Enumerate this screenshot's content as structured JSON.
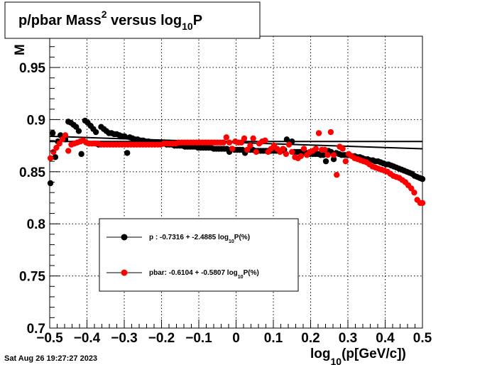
{
  "chart_data": {
    "type": "scatter",
    "title": {
      "main": "p/pbar Mass",
      "sup": "2",
      "mid": " versus log",
      "sub": "10",
      "end": "P"
    },
    "ylabel_fragment": "M",
    "xlabel": {
      "pre": "log",
      "sub": "10",
      "post": "(p[GeV/c])"
    },
    "xlim": [
      -0.5,
      0.5
    ],
    "ylim": [
      0.7,
      0.98
    ],
    "xticks": [
      -0.5,
      -0.4,
      -0.3,
      -0.2,
      -0.1,
      0,
      0.1,
      0.2,
      0.3,
      0.4,
      0.5
    ],
    "xtick_labels": [
      "−0.5",
      "−0.4",
      "−0.3",
      "−0.2",
      "−0.1",
      "0",
      "0.1",
      "0.2",
      "0.3",
      "0.4",
      "0.5"
    ],
    "yticks": [
      0.7,
      0.75,
      0.8,
      0.85,
      0.9,
      0.95
    ],
    "ytick_labels": [
      "0.7",
      "0.75",
      "0.8",
      "0.85",
      "0.9",
      "0.95"
    ],
    "grid": true,
    "legend_position": "lower-left inside plot",
    "series": [
      {
        "name": "p",
        "legend_label": {
          "pre": "p  : -0.7316 + -2.4885 log",
          "sub": "10",
          "post": "P(%)"
        },
        "color": "#000000",
        "points": [
          [
            -0.498,
            0.839
          ],
          [
            -0.492,
            0.887
          ],
          [
            -0.485,
            0.864
          ],
          [
            -0.478,
            0.879
          ],
          [
            -0.471,
            0.885
          ],
          [
            -0.465,
            0.883
          ],
          [
            -0.458,
            0.881
          ],
          [
            -0.45,
            0.898
          ],
          [
            -0.443,
            0.897
          ],
          [
            -0.436,
            0.895
          ],
          [
            -0.429,
            0.893
          ],
          [
            -0.422,
            0.889
          ],
          [
            -0.415,
            0.867
          ],
          [
            -0.405,
            0.899
          ],
          [
            -0.398,
            0.897
          ],
          [
            -0.39,
            0.894
          ],
          [
            -0.383,
            0.891
          ],
          [
            -0.376,
            0.888
          ],
          [
            -0.369,
            0.876
          ],
          [
            -0.362,
            0.893
          ],
          [
            -0.355,
            0.891
          ],
          [
            -0.348,
            0.889
          ],
          [
            -0.341,
            0.887
          ],
          [
            -0.334,
            0.887
          ],
          [
            -0.327,
            0.886
          ],
          [
            -0.32,
            0.886
          ],
          [
            -0.313,
            0.885
          ],
          [
            -0.306,
            0.884
          ],
          [
            -0.299,
            0.884
          ],
          [
            -0.292,
            0.868
          ],
          [
            -0.285,
            0.883
          ],
          [
            -0.278,
            0.882
          ],
          [
            -0.271,
            0.881
          ],
          [
            -0.264,
            0.881
          ],
          [
            -0.256,
            0.88
          ],
          [
            -0.249,
            0.88
          ],
          [
            -0.242,
            0.879
          ],
          [
            -0.235,
            0.879
          ],
          [
            -0.228,
            0.878
          ],
          [
            -0.221,
            0.878
          ],
          [
            -0.214,
            0.878
          ],
          [
            -0.207,
            0.877
          ],
          [
            -0.2,
            0.877
          ],
          [
            -0.193,
            0.877
          ],
          [
            -0.186,
            0.876
          ],
          [
            -0.179,
            0.876
          ],
          [
            -0.172,
            0.876
          ],
          [
            -0.165,
            0.875
          ],
          [
            -0.158,
            0.875
          ],
          [
            -0.151,
            0.875
          ],
          [
            -0.144,
            0.875
          ],
          [
            -0.137,
            0.874
          ],
          [
            -0.13,
            0.874
          ],
          [
            -0.123,
            0.874
          ],
          [
            -0.116,
            0.874
          ],
          [
            -0.109,
            0.874
          ],
          [
            -0.102,
            0.873
          ],
          [
            -0.095,
            0.873
          ],
          [
            -0.088,
            0.873
          ],
          [
            -0.081,
            0.873
          ],
          [
            -0.074,
            0.873
          ],
          [
            -0.067,
            0.873
          ],
          [
            -0.06,
            0.872
          ],
          [
            -0.053,
            0.872
          ],
          [
            -0.046,
            0.872
          ],
          [
            -0.039,
            0.872
          ],
          [
            -0.032,
            0.872
          ],
          [
            -0.025,
            0.872
          ],
          [
            -0.018,
            0.869
          ],
          [
            -0.011,
            0.872
          ],
          [
            -0.004,
            0.871
          ],
          [
            0.003,
            0.871
          ],
          [
            0.01,
            0.871
          ],
          [
            0.017,
            0.871
          ],
          [
            0.024,
            0.868
          ],
          [
            0.031,
            0.871
          ],
          [
            0.038,
            0.871
          ],
          [
            0.045,
            0.871
          ],
          [
            0.052,
            0.87
          ],
          [
            0.059,
            0.87
          ],
          [
            0.066,
            0.87
          ],
          [
            0.073,
            0.87
          ],
          [
            0.08,
            0.87
          ],
          [
            0.087,
            0.87
          ],
          [
            0.094,
            0.87
          ],
          [
            0.101,
            0.87
          ],
          [
            0.108,
            0.87
          ],
          [
            0.115,
            0.87
          ],
          [
            0.122,
            0.87
          ],
          [
            0.129,
            0.871
          ],
          [
            0.136,
            0.881
          ],
          [
            0.15,
            0.879
          ],
          [
            0.157,
            0.869
          ],
          [
            0.164,
            0.869
          ],
          [
            0.171,
            0.869
          ],
          [
            0.178,
            0.868
          ],
          [
            0.185,
            0.868
          ],
          [
            0.192,
            0.868
          ],
          [
            0.199,
            0.867
          ],
          [
            0.206,
            0.867
          ],
          [
            0.213,
            0.867
          ],
          [
            0.22,
            0.867
          ],
          [
            0.227,
            0.866
          ],
          [
            0.234,
            0.866
          ],
          [
            0.241,
            0.86
          ],
          [
            0.248,
            0.87
          ],
          [
            0.255,
            0.869
          ],
          [
            0.262,
            0.862
          ],
          [
            0.269,
            0.868
          ],
          [
            0.276,
            0.867
          ],
          [
            0.283,
            0.866
          ],
          [
            0.29,
            0.866
          ],
          [
            0.297,
            0.866
          ],
          [
            0.304,
            0.866
          ],
          [
            0.311,
            0.865
          ],
          [
            0.318,
            0.865
          ],
          [
            0.325,
            0.864
          ],
          [
            0.332,
            0.864
          ],
          [
            0.339,
            0.863
          ],
          [
            0.346,
            0.862
          ],
          [
            0.353,
            0.862
          ],
          [
            0.36,
            0.861
          ],
          [
            0.367,
            0.861
          ],
          [
            0.374,
            0.86
          ],
          [
            0.381,
            0.86
          ],
          [
            0.388,
            0.859
          ],
          [
            0.395,
            0.858
          ],
          [
            0.402,
            0.857
          ],
          [
            0.409,
            0.857
          ],
          [
            0.416,
            0.856
          ],
          [
            0.423,
            0.855
          ],
          [
            0.43,
            0.854
          ],
          [
            0.437,
            0.853
          ],
          [
            0.444,
            0.852
          ],
          [
            0.451,
            0.851
          ],
          [
            0.458,
            0.85
          ],
          [
            0.465,
            0.849
          ],
          [
            0.472,
            0.848
          ],
          [
            0.479,
            0.846
          ],
          [
            0.486,
            0.845
          ],
          [
            0.493,
            0.844
          ],
          [
            0.5,
            0.843
          ]
        ],
        "fit_line": [
          [
            -0.5,
            0.884
          ],
          [
            0.5,
            0.872
          ]
        ]
      },
      {
        "name": "pbar",
        "legend_label": {
          "pre": "pbar: -0.6104 + -0.5807 log",
          "sub": "10",
          "post": "P(%)"
        },
        "color": "#ff0000",
        "points": [
          [
            -0.498,
            0.863
          ],
          [
            -0.49,
            0.869
          ],
          [
            -0.482,
            0.873
          ],
          [
            -0.474,
            0.877
          ],
          [
            -0.466,
            0.881
          ],
          [
            -0.458,
            0.885
          ],
          [
            -0.45,
            0.87
          ],
          [
            -0.442,
            0.876
          ],
          [
            -0.434,
            0.877
          ],
          [
            -0.426,
            0.878
          ],
          [
            -0.418,
            0.879
          ],
          [
            -0.41,
            0.88
          ],
          [
            -0.402,
            0.878
          ],
          [
            -0.394,
            0.877
          ],
          [
            -0.386,
            0.877
          ],
          [
            -0.378,
            0.877
          ],
          [
            -0.37,
            0.877
          ],
          [
            -0.362,
            0.876
          ],
          [
            -0.354,
            0.876
          ],
          [
            -0.346,
            0.876
          ],
          [
            -0.338,
            0.876
          ],
          [
            -0.33,
            0.876
          ],
          [
            -0.322,
            0.876
          ],
          [
            -0.314,
            0.876
          ],
          [
            -0.306,
            0.876
          ],
          [
            -0.298,
            0.876
          ],
          [
            -0.29,
            0.876
          ],
          [
            -0.282,
            0.876
          ],
          [
            -0.274,
            0.876
          ],
          [
            -0.266,
            0.876
          ],
          [
            -0.258,
            0.876
          ],
          [
            -0.25,
            0.876
          ],
          [
            -0.242,
            0.876
          ],
          [
            -0.234,
            0.876
          ],
          [
            -0.226,
            0.876
          ],
          [
            -0.218,
            0.876
          ],
          [
            -0.21,
            0.876
          ],
          [
            -0.202,
            0.876
          ],
          [
            -0.194,
            0.877
          ],
          [
            -0.186,
            0.877
          ],
          [
            -0.178,
            0.877
          ],
          [
            -0.17,
            0.877
          ],
          [
            -0.162,
            0.877
          ],
          [
            -0.154,
            0.878
          ],
          [
            -0.146,
            0.878
          ],
          [
            -0.138,
            0.878
          ],
          [
            -0.13,
            0.878
          ],
          [
            -0.122,
            0.878
          ],
          [
            -0.114,
            0.878
          ],
          [
            -0.106,
            0.878
          ],
          [
            -0.098,
            0.878
          ],
          [
            -0.09,
            0.878
          ],
          [
            -0.082,
            0.878
          ],
          [
            -0.074,
            0.878
          ],
          [
            -0.066,
            0.878
          ],
          [
            -0.058,
            0.878
          ],
          [
            -0.05,
            0.878
          ],
          [
            -0.042,
            0.878
          ],
          [
            -0.034,
            0.878
          ],
          [
            -0.026,
            0.883
          ],
          [
            -0.018,
            0.878
          ],
          [
            -0.01,
            0.872
          ],
          [
            -0.002,
            0.879
          ],
          [
            0.006,
            0.878
          ],
          [
            0.014,
            0.878
          ],
          [
            0.022,
            0.882
          ],
          [
            0.03,
            0.871
          ],
          [
            0.038,
            0.875
          ],
          [
            0.046,
            0.882
          ],
          [
            0.054,
            0.869
          ],
          [
            0.062,
            0.877
          ],
          [
            0.07,
            0.879
          ],
          [
            0.078,
            0.88
          ],
          [
            0.086,
            0.869
          ],
          [
            0.094,
            0.872
          ],
          [
            0.102,
            0.875
          ],
          [
            0.11,
            0.872
          ],
          [
            0.118,
            0.869
          ],
          [
            0.126,
            0.872
          ],
          [
            0.134,
            0.867
          ],
          [
            0.142,
            0.876
          ],
          [
            0.15,
            0.869
          ],
          [
            0.158,
            0.864
          ],
          [
            0.166,
            0.863
          ],
          [
            0.174,
            0.865
          ],
          [
            0.182,
            0.872
          ],
          [
            0.19,
            0.866
          ],
          [
            0.198,
            0.869
          ],
          [
            0.206,
            0.87
          ],
          [
            0.214,
            0.872
          ],
          [
            0.222,
            0.887
          ],
          [
            0.23,
            0.871
          ],
          [
            0.238,
            0.871
          ],
          [
            0.246,
            0.866
          ],
          [
            0.254,
            0.888
          ],
          [
            0.262,
            0.866
          ],
          [
            0.27,
            0.847
          ],
          [
            0.278,
            0.874
          ],
          [
            0.286,
            0.872
          ],
          [
            0.294,
            0.86
          ],
          [
            0.302,
            0.867
          ],
          [
            0.31,
            0.865
          ],
          [
            0.318,
            0.863
          ],
          [
            0.326,
            0.862
          ],
          [
            0.334,
            0.861
          ],
          [
            0.342,
            0.86
          ],
          [
            0.35,
            0.859
          ],
          [
            0.358,
            0.857
          ],
          [
            0.366,
            0.855
          ],
          [
            0.374,
            0.854
          ],
          [
            0.382,
            0.853
          ],
          [
            0.39,
            0.852
          ],
          [
            0.398,
            0.851
          ],
          [
            0.406,
            0.85
          ],
          [
            0.414,
            0.848
          ],
          [
            0.422,
            0.846
          ],
          [
            0.43,
            0.845
          ],
          [
            0.438,
            0.844
          ],
          [
            0.446,
            0.842
          ],
          [
            0.454,
            0.84
          ],
          [
            0.462,
            0.837
          ],
          [
            0.47,
            0.834
          ],
          [
            0.478,
            0.83
          ],
          [
            0.486,
            0.823
          ],
          [
            0.494,
            0.82
          ],
          [
            0.5,
            0.82
          ]
        ],
        "fit_line": [
          [
            -0.5,
            0.879
          ],
          [
            0.5,
            0.879
          ]
        ]
      }
    ],
    "footer_timestamp": "Sat Aug 26 19:27:27 2023"
  }
}
